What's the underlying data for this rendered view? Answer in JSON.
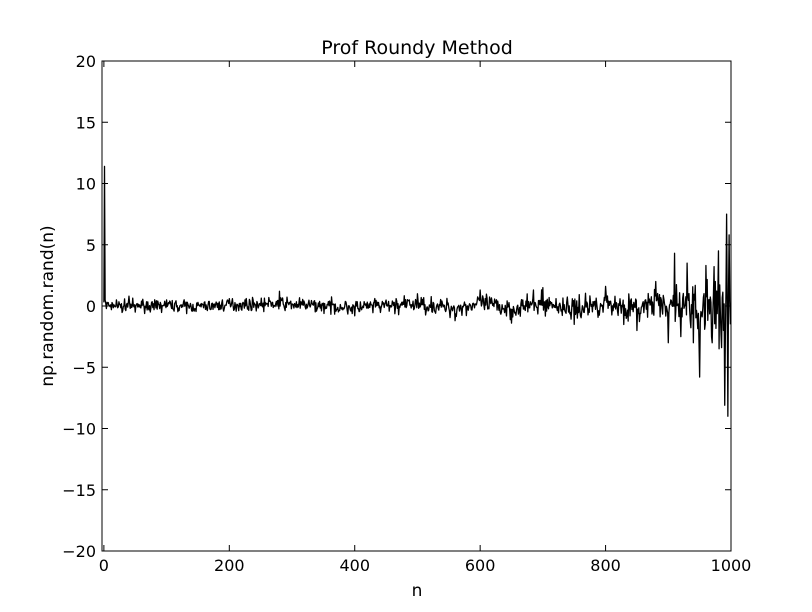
{
  "chart_data": {
    "type": "line",
    "title": "Prof Roundy Method",
    "xlabel": "n",
    "ylabel": "np.random.rand(n)",
    "xlim": [
      -3,
      1000
    ],
    "ylim": [
      -20,
      20
    ],
    "xticks": [
      0,
      200,
      400,
      600,
      800,
      1000
    ],
    "yticks": [
      -20,
      -15,
      -10,
      -5,
      0,
      5,
      10,
      15,
      20
    ],
    "xtick_labels": [
      "0",
      "200",
      "400",
      "600",
      "800",
      "1000"
    ],
    "ytick_labels": [
      "−20",
      "−15",
      "−10",
      "−5",
      "0",
      "5",
      "10",
      "15",
      "20"
    ],
    "grid": false,
    "legend": "none",
    "line_color": "#000000",
    "series": [
      {
        "x": [
          0,
          1,
          2,
          3,
          5,
          8,
          12,
          20,
          30,
          40,
          50,
          60,
          80,
          100,
          140,
          200,
          280,
          400,
          500,
          560,
          600,
          650,
          700,
          750,
          800,
          850,
          880,
          900,
          910,
          920,
          930,
          940,
          950,
          960,
          970,
          980,
          985,
          990,
          993,
          995,
          997,
          999
        ],
        "y": [
          0.3,
          11.4,
          0.5,
          0.2,
          0.3,
          0.0,
          -0.3,
          0.5,
          -0.4,
          0.8,
          -0.5,
          0.4,
          -0.3,
          0.5,
          -0.4,
          0.6,
          1.2,
          -0.8,
          1.0,
          -1.2,
          1.3,
          -1.4,
          1.5,
          -1.5,
          1.6,
          -2.0,
          2.0,
          -3.0,
          4.3,
          -2.5,
          3.5,
          -3.0,
          -5.8,
          3.3,
          -3.0,
          4.5,
          -3.4,
          -8.1,
          7.5,
          -9.0,
          5.8,
          -1.5
        ]
      }
    ]
  }
}
